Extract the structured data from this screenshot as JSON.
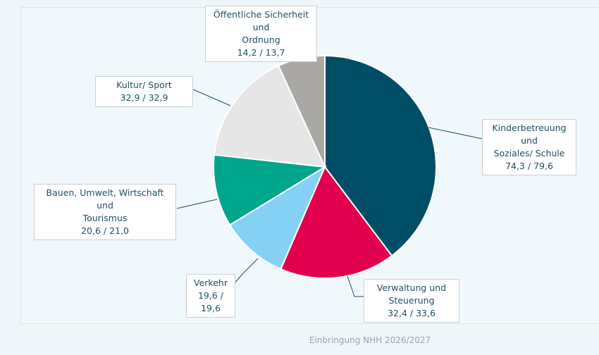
{
  "chart_data": {
    "type": "pie",
    "slices": [
      {
        "label": "Kinderbetreuung und Soziales/ Schule",
        "label_lines": [
          "Kinderbetreuung und",
          "Soziales/ Schule"
        ],
        "value_text": "74,3 / 79,6",
        "value": 79.6,
        "color": "#004e66"
      },
      {
        "label": "Verwaltung und Steuerung",
        "label_lines": [
          "Verwaltung und",
          "Steuerung"
        ],
        "value_text": "32,4 / 33,6",
        "value": 33.6,
        "color": "#e0004d"
      },
      {
        "label": "Verkehr",
        "label_lines": [
          "Verkehr"
        ],
        "value_text": "19,6 / 19,6",
        "value": 19.6,
        "color": "#85d1f5"
      },
      {
        "label": "Bauen, Umwelt, Wirtschaft und Tourismus",
        "label_lines": [
          "Bauen, Umwelt, Wirtschaft und",
          "Tourismus"
        ],
        "value_text": "20,6 / 21,0",
        "value": 21.0,
        "color": "#00a68c"
      },
      {
        "label": "Kultur/ Sport",
        "label_lines": [
          "Kultur/ Sport"
        ],
        "value_text": "32,9 / 32,9",
        "value": 32.9,
        "color": "#e6e6e6"
      },
      {
        "label": "Öffentliche Sicherheit und Ordnung",
        "label_lines": [
          "Öffentliche Sicherheit und",
          "Ordnung"
        ],
        "value_text": "14,2 / 13,7",
        "value": 13.7,
        "color": "#aaa8a4"
      }
    ],
    "legend": "none",
    "leader_color": "#1f4f63"
  },
  "footer": {
    "source": "Einbringung NHH 2026/2027"
  }
}
